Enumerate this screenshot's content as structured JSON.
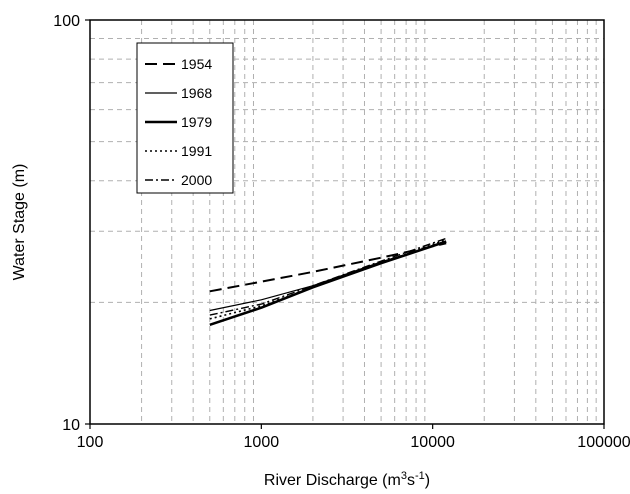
{
  "chart_data": {
    "type": "line",
    "xlabel": "River Discharge (m",
    "xlabel_sup1": "3",
    "xlabel_mid": "s",
    "xlabel_sup2": "-1",
    "xlabel_end": ")",
    "ylabel": "Water Stage (m)",
    "x_scale": "log",
    "y_scale": "log",
    "xlim": [
      100,
      100000
    ],
    "ylim": [
      10,
      100
    ],
    "x_ticks": [
      "100",
      "1000",
      "10000",
      "100000"
    ],
    "y_ticks": [
      "10",
      "100"
    ],
    "grid": true,
    "legend_position": "top-left",
    "series": [
      {
        "name": "1954",
        "dash": "12,6",
        "width": 2,
        "points": [
          [
            500,
            21.3
          ],
          [
            1000,
            22.5
          ],
          [
            2000,
            23.8
          ],
          [
            5000,
            25.8
          ],
          [
            12000,
            28.0
          ]
        ]
      },
      {
        "name": "1968",
        "dash": "",
        "width": 1.2,
        "points": [
          [
            500,
            19.1
          ],
          [
            1000,
            20.3
          ],
          [
            2000,
            22.0
          ],
          [
            5000,
            25.2
          ],
          [
            12000,
            28.2
          ]
        ]
      },
      {
        "name": "1979",
        "dash": "",
        "width": 2.6,
        "points": [
          [
            500,
            17.6
          ],
          [
            1000,
            19.4
          ],
          [
            2000,
            21.8
          ],
          [
            5000,
            25.0
          ],
          [
            12000,
            28.3
          ]
        ]
      },
      {
        "name": "1991",
        "dash": "2,3",
        "width": 1.6,
        "points": [
          [
            500,
            18.2
          ],
          [
            1000,
            19.6
          ],
          [
            2000,
            21.8
          ],
          [
            5000,
            25.0
          ],
          [
            12000,
            28.6
          ]
        ]
      },
      {
        "name": "2000",
        "dash": "8,3,2,3",
        "width": 1.4,
        "points": [
          [
            500,
            18.6
          ],
          [
            1000,
            19.8
          ],
          [
            2000,
            22.0
          ],
          [
            5000,
            25.3
          ],
          [
            12000,
            28.8
          ]
        ]
      }
    ]
  }
}
